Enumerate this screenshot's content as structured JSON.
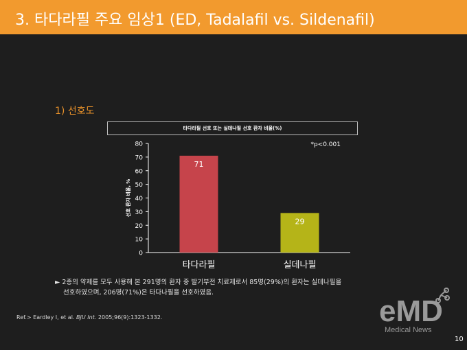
{
  "header": {
    "title": "3. 타다라필 주요 임상1 (ED, Tadalafil vs. Sildenafil)"
  },
  "section": {
    "heading": "1) 선호도"
  },
  "chart_data": {
    "type": "bar",
    "title": "타다라필 선호 또는 실데나필 선호 환자 비율(%)",
    "ylabel": "선호 환자 비율, %",
    "categories": [
      "타다라필",
      "실데나필"
    ],
    "values": [
      71,
      29
    ],
    "colors": [
      "#c6444b",
      "#b5b418"
    ],
    "ylim": [
      0,
      80
    ],
    "yticks": [
      0,
      10,
      20,
      30,
      40,
      50,
      60,
      70,
      80
    ],
    "annotation": "*p<0.001",
    "grid": false
  },
  "summary": {
    "line1": "► 2종의 약제를 모두 사용해 본 291명의 환자 중 발기부전 치료제로서 85명(29%)의 환자는 실데나필을",
    "line2": "선호하였으며, 206명(71%)은 타다나필을 선호하였음."
  },
  "reference": {
    "prefix": "Ref.> Eardley I, et al.",
    "journal": "BJU Int.",
    "suffix": "2005;96(9):1323-1332."
  },
  "logo": {
    "text": "eMD",
    "subtext": "Medical News",
    "color": "#9a9a9a"
  },
  "page_number": "10"
}
